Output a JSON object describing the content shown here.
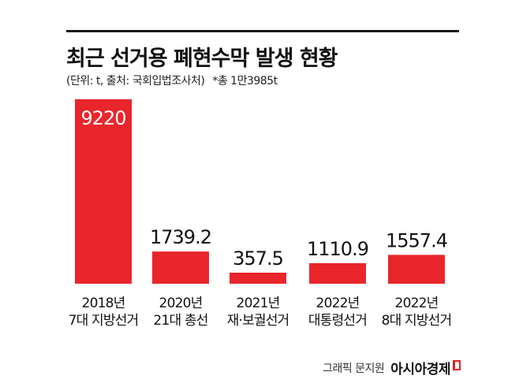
{
  "header": {
    "title": "최근 선거용 폐현수막 발생 현황",
    "source": "(단위: t, 출처: 국회입법조사처)",
    "total": "*총 1만3985t"
  },
  "footer": {
    "graphic_credit": "그래픽 문지원",
    "publisher": "아시아경제"
  },
  "colors": {
    "bar": "#e8262c",
    "text": "#111111"
  },
  "chart_data": {
    "type": "bar",
    "title": "최근 선거용 폐현수막 발생 현황",
    "unit": "t",
    "categories": [
      [
        "2018년",
        "7대 지방선거"
      ],
      [
        "2020년",
        "21대 총선"
      ],
      [
        "2021년",
        "재·보궐선거"
      ],
      [
        "2022년",
        "대통령선거"
      ],
      [
        "2022년",
        "8대 지방선거"
      ]
    ],
    "values": [
      9220,
      1739.2,
      357.5,
      1110.9,
      1557.4
    ],
    "value_labels": [
      "9220",
      "1739.2",
      "357.5",
      "1110.9",
      "1557.4"
    ],
    "ylim": [
      0,
      9220
    ],
    "grid": false,
    "legend": "none",
    "axis_break": true
  }
}
